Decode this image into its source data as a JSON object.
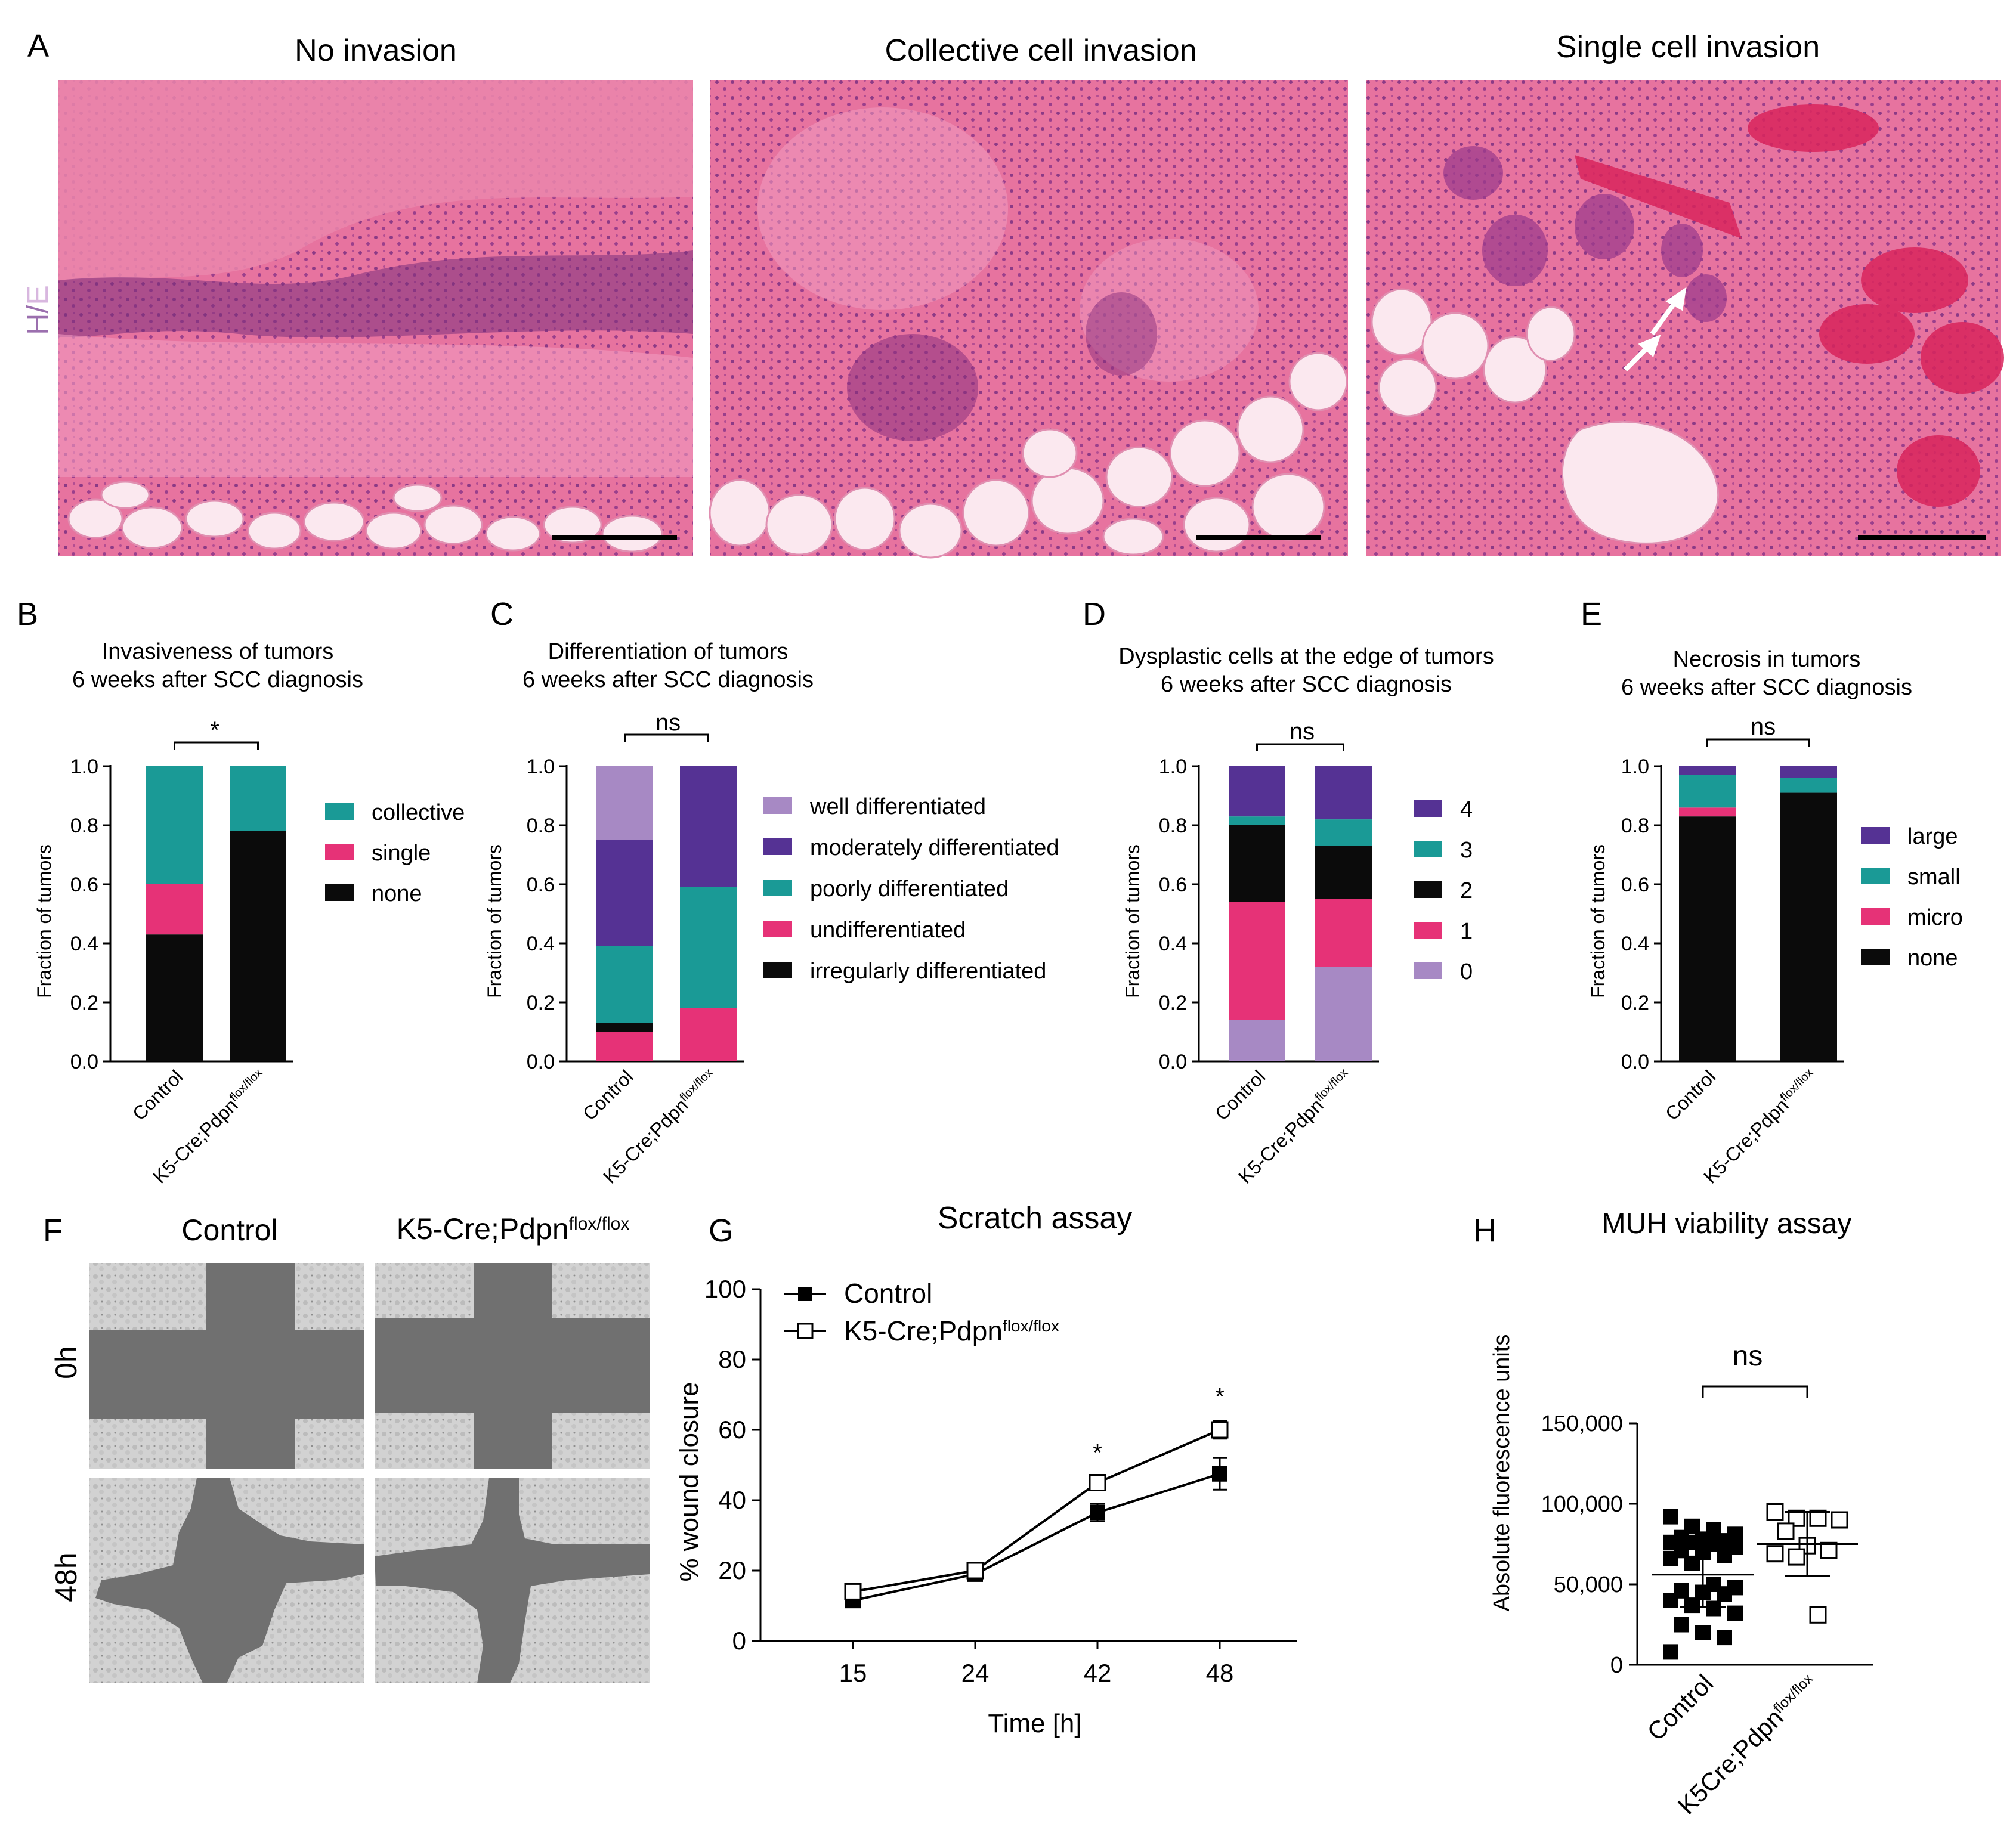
{
  "colors": {
    "teal": "#1a9a96",
    "pink": "#e63277",
    "black": "#0b0b0b",
    "purple": "#553294",
    "lavender": "#a789c4",
    "he_label_h": "#9b6fae",
    "he_label_e": "#d8b7df",
    "he_bg": "#e36c98",
    "fat": "#fbe8ef",
    "dish_light": "#cbcbcb",
    "dish_dark": "#6f6f6f"
  },
  "panel_a": {
    "letter": "A",
    "stain_h": "H",
    "stain_sep": "/",
    "stain_e": "E",
    "images": [
      {
        "title": "No invasion"
      },
      {
        "title": "Collective cell invasion"
      },
      {
        "title": "Single cell invasion"
      }
    ]
  },
  "panel_b": {
    "letter": "B",
    "title1": "Invasiveness of tumors",
    "title2": "6 weeks after SCC diagnosis",
    "sig": "*",
    "ylabel": "Fraction of tumors",
    "ticks": [
      "0.0",
      "0.2",
      "0.4",
      "0.6",
      "0.8",
      "1.0"
    ],
    "cat1": "Control",
    "cat2_base": "K5-Cre;Pdpn",
    "cat2_sup": "flox/flox",
    "legend": [
      {
        "label": "collective",
        "color": "#1a9a96"
      },
      {
        "label": "single",
        "color": "#e63277"
      },
      {
        "label": "none",
        "color": "#0b0b0b"
      }
    ]
  },
  "panel_c": {
    "letter": "C",
    "title1": "Differentiation of tumors",
    "title2": "6 weeks after SCC diagnosis",
    "sig": "ns",
    "ylabel": "Fraction of tumors",
    "ticks": [
      "0.0",
      "0.2",
      "0.4",
      "0.6",
      "0.8",
      "1.0"
    ],
    "cat1": "Control",
    "cat2_base": "K5-Cre;Pdpn",
    "cat2_sup": "flox/flox",
    "legend": [
      {
        "label": "well differentiated",
        "color": "#a789c4"
      },
      {
        "label": "moderately differentiated",
        "color": "#553294"
      },
      {
        "label": "poorly differentiated",
        "color": "#1a9a96"
      },
      {
        "label": "undifferentiated",
        "color": "#e63277"
      },
      {
        "label": "irregularly differentiated",
        "color": "#0b0b0b"
      }
    ]
  },
  "panel_d": {
    "letter": "D",
    "title1": "Dysplastic cells at the edge of tumors",
    "title2": "6 weeks after SCC diagnosis",
    "sig": "ns",
    "ylabel": "Fraction of tumors",
    "ticks": [
      "0.0",
      "0.2",
      "0.4",
      "0.6",
      "0.8",
      "1.0"
    ],
    "cat1": "Control",
    "cat2_base": "K5-Cre;Pdpn",
    "cat2_sup": "flox/flox",
    "legend": [
      {
        "label": "4",
        "color": "#553294"
      },
      {
        "label": "3",
        "color": "#1a9a96"
      },
      {
        "label": "2",
        "color": "#0b0b0b"
      },
      {
        "label": "1",
        "color": "#e63277"
      },
      {
        "label": "0",
        "color": "#a789c4"
      }
    ]
  },
  "panel_e": {
    "letter": "E",
    "title1": "Necrosis in tumors",
    "title2": "6 weeks after SCC diagnosis",
    "sig": "ns",
    "ylabel": "Fraction of tumors",
    "ticks": [
      "0.0",
      "0.2",
      "0.4",
      "0.6",
      "0.8",
      "1.0"
    ],
    "cat1": "Control",
    "cat2_base": "K5-Cre;Pdpn",
    "cat2_sup": "flox/flox",
    "legend": [
      {
        "label": "large",
        "color": "#553294"
      },
      {
        "label": "small",
        "color": "#1a9a96"
      },
      {
        "label": "micro",
        "color": "#e63277"
      },
      {
        "label": "none",
        "color": "#0b0b0b"
      }
    ]
  },
  "panel_f": {
    "letter": "F",
    "col1": "Control",
    "col2_base": "K5-Cre;Pdpn",
    "col2_sup": "flox/flox",
    "row1": "0h",
    "row2": "48h"
  },
  "panel_g": {
    "letter": "G",
    "title": "Scratch assay",
    "ylabel": "% wound closure",
    "xlabel": "Time [h]",
    "legend1": "Control",
    "legend2_base": "K5-Cre;Pdpn",
    "legend2_sup": "flox/flox",
    "yticks": [
      "0",
      "20",
      "40",
      "60",
      "80",
      "100"
    ],
    "xticks": [
      "15",
      "24",
      "42",
      "48"
    ],
    "star": "*"
  },
  "panel_h": {
    "letter": "H",
    "title": "MUH viability assay",
    "ylabel": "Absolute fluorescence units",
    "yticks": [
      "0",
      "50,000",
      "100,000",
      "150,000"
    ],
    "cat1": "Control",
    "cat2_base": "K5Cre;Pdpn",
    "cat2_sup": "flox/flox",
    "sig": "ns"
  },
  "chart_data": [
    {
      "type": "bar",
      "stacked": true,
      "panel": "B",
      "title": "Invasiveness of tumors 6 weeks after SCC diagnosis",
      "categories": [
        "Control",
        "K5-Cre;Pdpn flox/flox"
      ],
      "ylabel": "Fraction of tumors",
      "ylim": [
        0,
        1
      ],
      "series": [
        {
          "name": "none",
          "values": [
            0.43,
            0.78
          ]
        },
        {
          "name": "single",
          "values": [
            0.17,
            0.0
          ]
        },
        {
          "name": "collective",
          "values": [
            0.4,
            0.22
          ]
        }
      ],
      "legend": "right"
    },
    {
      "type": "bar",
      "stacked": true,
      "panel": "C",
      "title": "Differentiation of tumors 6 weeks after SCC diagnosis",
      "categories": [
        "Control",
        "K5-Cre;Pdpn flox/flox"
      ],
      "ylabel": "Fraction of tumors",
      "ylim": [
        0,
        1
      ],
      "series": [
        {
          "name": "undifferentiated",
          "values": [
            0.1,
            0.18
          ]
        },
        {
          "name": "irregularly differentiated",
          "values": [
            0.03,
            0.0
          ]
        },
        {
          "name": "poorly differentiated",
          "values": [
            0.26,
            0.41
          ]
        },
        {
          "name": "moderately differentiated",
          "values": [
            0.36,
            0.41
          ]
        },
        {
          "name": "well differentiated",
          "values": [
            0.25,
            0.0
          ]
        }
      ],
      "legend": "right"
    },
    {
      "type": "bar",
      "stacked": true,
      "panel": "D",
      "title": "Dysplastic cells at the edge of tumors 6 weeks after SCC diagnosis",
      "categories": [
        "Control",
        "K5-Cre;Pdpn flox/flox"
      ],
      "ylabel": "Fraction of tumors",
      "ylim": [
        0,
        1
      ],
      "series": [
        {
          "name": "0",
          "values": [
            0.14,
            0.32
          ]
        },
        {
          "name": "1",
          "values": [
            0.4,
            0.23
          ]
        },
        {
          "name": "2",
          "values": [
            0.26,
            0.18
          ]
        },
        {
          "name": "3",
          "values": [
            0.03,
            0.09
          ]
        },
        {
          "name": "4",
          "values": [
            0.17,
            0.18
          ]
        }
      ],
      "legend": "right"
    },
    {
      "type": "bar",
      "stacked": true,
      "panel": "E",
      "title": "Necrosis in tumors 6 weeks after SCC diagnosis",
      "categories": [
        "Control",
        "K5-Cre;Pdpn flox/flox"
      ],
      "ylabel": "Fraction of tumors",
      "ylim": [
        0,
        1
      ],
      "series": [
        {
          "name": "none",
          "values": [
            0.83,
            0.91
          ]
        },
        {
          "name": "micro",
          "values": [
            0.03,
            0.0
          ]
        },
        {
          "name": "small",
          "values": [
            0.11,
            0.05
          ]
        },
        {
          "name": "large",
          "values": [
            0.03,
            0.04
          ]
        }
      ],
      "legend": "right"
    },
    {
      "type": "line",
      "panel": "G",
      "title": "Scratch assay",
      "xlabel": "Time [h]",
      "ylabel": "% wound closure",
      "ylim": [
        0,
        100
      ],
      "x": [
        15,
        24,
        42,
        48
      ],
      "series": [
        {
          "name": "Control",
          "values": [
            11.5,
            19,
            36.5,
            47.5
          ],
          "err": [
            1.5,
            1,
            2.5,
            4.5
          ]
        },
        {
          "name": "K5-Cre;Pdpn flox/flox",
          "values": [
            14,
            20,
            45,
            60
          ],
          "err": [
            1,
            1,
            1.5,
            2.5
          ]
        }
      ],
      "significant_at": [
        42,
        48
      ],
      "legend": "top-left"
    },
    {
      "type": "scatter",
      "panel": "H",
      "title": "MUH viability assay",
      "ylabel": "Absolute fluorescence units",
      "ylim": [
        0,
        150000
      ],
      "categories": [
        "Control",
        "K5Cre;Pdpn flox/flox"
      ],
      "groups": [
        {
          "name": "Control",
          "mean": 56000,
          "sd": 20000,
          "values": [
            92000,
            86000,
            84000,
            81000,
            79000,
            78000,
            77000,
            76000,
            76000,
            75000,
            73000,
            71000,
            70000,
            68000,
            66000,
            63000,
            50000,
            48000,
            46000,
            45000,
            44000,
            40000,
            37000,
            35000,
            32000,
            25000,
            20000,
            17000,
            8000
          ]
        },
        {
          "name": "K5Cre;Pdpn flox/flox",
          "mean": 75000,
          "sd": 20000,
          "values": [
            95000,
            91000,
            91000,
            90000,
            83000,
            74000,
            71000,
            69000,
            67000,
            31000
          ]
        }
      ],
      "sig": "ns"
    }
  ]
}
